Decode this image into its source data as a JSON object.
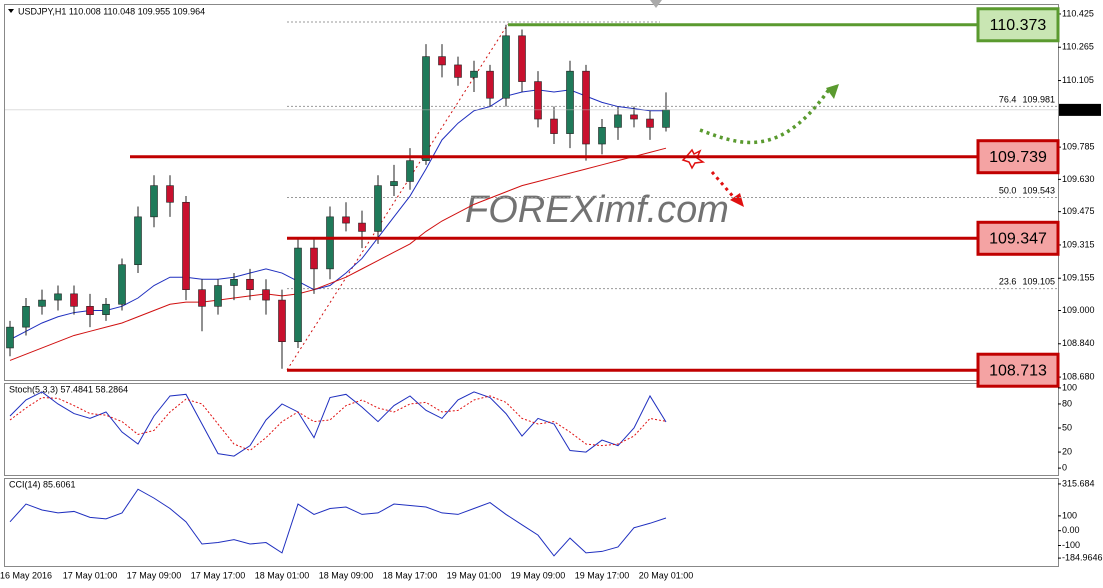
{
  "chart_data": [
    {
      "type": "candlestick",
      "title": "USDJPY,H1 110.008 110.048 109.955 109.964",
      "watermark": "FOREXimf.com",
      "categories": [
        null,
        "16 May 2016",
        null,
        null,
        null,
        "17 May 01:00",
        null,
        null,
        null,
        "17 May 09:00",
        null,
        null,
        null,
        "17 May 17:00",
        null,
        null,
        null,
        "18 May 01:00",
        null,
        null,
        null,
        "18 May 09:00",
        null,
        null,
        null,
        "18 May 17:00",
        null,
        null,
        null,
        "19 May 01:00",
        null,
        null,
        null,
        "19 May 09:00",
        null,
        null,
        null,
        "19 May 17:00",
        null,
        null,
        null,
        "20 May 01:00"
      ],
      "open": [
        108.82,
        108.92,
        109.02,
        109.05,
        109.08,
        109.02,
        108.98,
        109.03,
        109.22,
        109.45,
        109.6,
        109.52,
        109.1,
        109.02,
        109.12,
        109.15,
        109.1,
        109.05,
        108.85,
        109.3,
        109.2,
        109.45,
        109.42,
        109.38,
        109.6,
        109.62,
        109.72,
        110.22,
        110.18,
        110.12,
        110.15,
        110.02,
        110.32,
        110.1,
        109.92,
        109.85,
        110.15,
        109.8,
        109.88,
        109.94,
        109.92,
        109.88
      ],
      "high": [
        108.95,
        109.06,
        109.1,
        109.12,
        109.12,
        109.08,
        109.06,
        109.25,
        109.5,
        109.65,
        109.65,
        109.55,
        109.15,
        109.15,
        109.18,
        109.2,
        109.15,
        109.1,
        109.35,
        109.35,
        109.5,
        109.52,
        109.48,
        109.65,
        109.7,
        109.78,
        110.28,
        110.28,
        110.22,
        110.2,
        110.18,
        110.373,
        110.35,
        110.15,
        109.98,
        110.2,
        110.18,
        109.92,
        109.98,
        109.98,
        109.96,
        110.048
      ],
      "low": [
        108.78,
        108.88,
        108.98,
        109.0,
        108.98,
        108.92,
        108.95,
        109.0,
        109.18,
        109.4,
        109.45,
        109.05,
        108.9,
        108.98,
        109.05,
        109.05,
        108.98,
        108.72,
        108.82,
        109.08,
        109.15,
        109.38,
        109.3,
        109.32,
        109.55,
        109.58,
        109.7,
        110.12,
        110.08,
        110.05,
        109.98,
        109.98,
        110.05,
        109.88,
        109.8,
        109.78,
        109.72,
        109.75,
        109.82,
        109.88,
        109.82,
        109.86
      ],
      "close": [
        108.92,
        109.02,
        109.05,
        109.08,
        109.02,
        108.98,
        109.03,
        109.22,
        109.45,
        109.6,
        109.52,
        109.1,
        109.02,
        109.12,
        109.15,
        109.1,
        109.05,
        108.85,
        109.3,
        109.2,
        109.45,
        109.42,
        109.38,
        109.6,
        109.62,
        109.72,
        110.22,
        110.18,
        110.12,
        110.15,
        110.02,
        110.32,
        110.1,
        109.92,
        109.85,
        110.15,
        109.8,
        109.88,
        109.94,
        109.92,
        109.88,
        109.964
      ],
      "bull_color": "#1f7a5a",
      "bear_color": "#c8102e",
      "moving_averages": [
        {
          "color": "#1f2fbf",
          "values": [
            108.86,
            108.9,
            108.94,
            108.97,
            108.99,
            109.0,
            109.0,
            109.02,
            109.06,
            109.12,
            109.16,
            109.16,
            109.15,
            109.15,
            109.16,
            109.18,
            109.2,
            109.18,
            109.14,
            109.1,
            109.12,
            109.18,
            109.25,
            109.35,
            109.45,
            109.55,
            109.68,
            109.82,
            109.9,
            109.96,
            109.98,
            110.03,
            110.05,
            110.06,
            110.05,
            110.06,
            110.03,
            110.0,
            109.98,
            109.97,
            109.96,
            109.96
          ]
        },
        {
          "color": "#d01010",
          "values": [
            108.76,
            108.79,
            108.82,
            108.85,
            108.88,
            108.9,
            108.92,
            108.94,
            108.97,
            109.0,
            109.03,
            109.04,
            109.04,
            109.05,
            109.06,
            109.07,
            109.08,
            109.07,
            109.08,
            109.1,
            109.13,
            109.16,
            109.2,
            109.24,
            109.28,
            109.32,
            109.38,
            109.43,
            109.47,
            109.51,
            109.54,
            109.57,
            109.6,
            109.62,
            109.64,
            109.66,
            109.68,
            109.7,
            109.72,
            109.74,
            109.76,
            109.78
          ]
        }
      ],
      "levels": [
        {
          "value": 110.373,
          "color": "#5a9a2f",
          "fill": "#c9e6b3"
        },
        {
          "value": 109.739,
          "color": "#c00000",
          "fill": "#f4a3a3"
        },
        {
          "value": 109.347,
          "color": "#c00000",
          "fill": "#f4a3a3"
        },
        {
          "value": 108.713,
          "color": "#c00000",
          "fill": "#f4a3a3"
        }
      ],
      "fib": [
        {
          "ratio": "76.4",
          "price": 109.981
        },
        {
          "ratio": "50.0",
          "price": 109.543
        },
        {
          "ratio": "23.6",
          "price": 109.105
        }
      ],
      "last": 109.964,
      "ylim": [
        108.666,
        110.468
      ],
      "yticks": [
        110.425,
        110.265,
        110.105,
        109.785,
        {
          "value": 109.63,
          "label": "109.630"
        },
        109.475,
        109.315,
        109.155,
        {
          "value": 109,
          "label": "109.000"
        },
        {
          "value": 108.84,
          "label": "108.840"
        },
        {
          "value": 108.68,
          "label": "108.680"
        }
      ]
    },
    {
      "type": "line",
      "title": "Stoch(5,3,3) 57.4841 58.2864",
      "series": [
        {
          "color": "#1f2fbf",
          "dash": false,
          "values": [
            65,
            85,
            95,
            80,
            68,
            62,
            70,
            45,
            30,
            65,
            90,
            92,
            55,
            18,
            15,
            28,
            60,
            80,
            70,
            38,
            88,
            92,
            76,
            58,
            78,
            90,
            72,
            62,
            85,
            95,
            88,
            68,
            40,
            62,
            55,
            22,
            20,
            35,
            28,
            50,
            90,
            57.4841
          ]
        },
        {
          "color": "#e01010",
          "dash": true,
          "values": [
            60,
            75,
            88,
            87,
            78,
            68,
            66,
            58,
            42,
            47,
            70,
            86,
            80,
            55,
            30,
            22,
            38,
            58,
            70,
            58,
            60,
            78,
            85,
            75,
            70,
            80,
            82,
            70,
            72,
            85,
            90,
            82,
            62,
            55,
            58,
            45,
            30,
            28,
            30,
            40,
            62,
            58.2864
          ]
        }
      ],
      "ylim": [
        -8.6,
        104.9
      ],
      "yticks": [
        100,
        80,
        50,
        20,
        0
      ]
    },
    {
      "type": "line",
      "title": "CCI(14) 85.6061",
      "series": [
        {
          "color": "#1f2fbf",
          "dash": false,
          "values": [
            60,
            180,
            140,
            120,
            130,
            90,
            80,
            120,
            280,
            220,
            150,
            60,
            -90,
            -80,
            -60,
            -90,
            -80,
            -150,
            180,
            110,
            150,
            160,
            110,
            120,
            180,
            170,
            160,
            120,
            110,
            150,
            190,
            110,
            40,
            -30,
            -170,
            -50,
            -150,
            -140,
            -110,
            20,
            50,
            85.6061
          ]
        }
      ],
      "ylim": [
        -238.4,
        349.1
      ],
      "yticks": [
        315.684,
        100,
        {
          "value": 0,
          "label": "0.00"
        },
        -100,
        -184.9646
      ]
    }
  ]
}
